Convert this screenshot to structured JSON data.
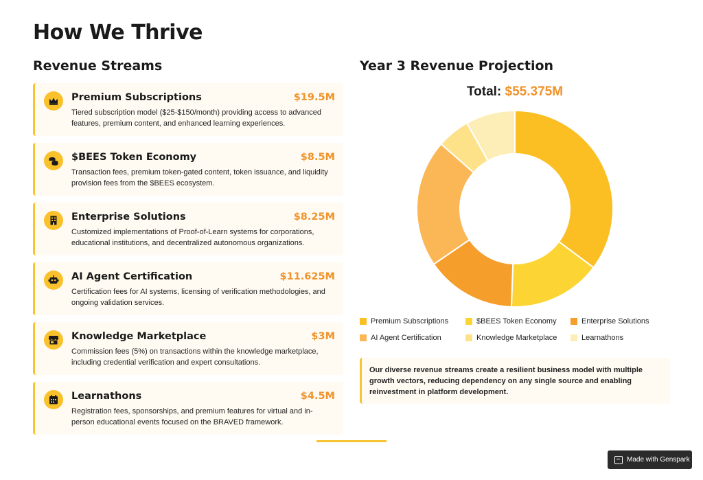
{
  "page": {
    "title": "How We Thrive"
  },
  "streams_section": {
    "title": "Revenue Streams",
    "items": [
      {
        "name": "Premium Subscriptions",
        "amount": "$19.5M",
        "icon": "crown-icon",
        "description": "Tiered subscription model ($25-$150/month) providing access to advanced features, premium content, and enhanced learning experiences."
      },
      {
        "name": "$BEES Token Economy",
        "amount": "$8.5M",
        "icon": "coins-icon",
        "description": "Transaction fees, premium token-gated content, token issuance, and liquidity provision fees from the $BEES ecosystem."
      },
      {
        "name": "Enterprise Solutions",
        "amount": "$8.25M",
        "icon": "building-icon",
        "description": "Customized implementations of Proof-of-Learn systems for corporations, educational institutions, and decentralized autonomous organizations."
      },
      {
        "name": "AI Agent Certification",
        "amount": "$11.625M",
        "icon": "robot-icon",
        "description": "Certification fees for AI systems, licensing of verification methodologies, and ongoing validation services."
      },
      {
        "name": "Knowledge Marketplace",
        "amount": "$3M",
        "icon": "store-icon",
        "description": "Commission fees (5%) on transactions within the knowledge marketplace, including credential verification and expert consultations."
      },
      {
        "name": "Learnathons",
        "amount": "$4.5M",
        "icon": "calendar-icon",
        "description": "Registration fees, sponsorships, and premium features for virtual and in-person educational events focused on the BRAVED framework."
      }
    ]
  },
  "projection": {
    "title": "Year 3 Revenue Projection",
    "total_label": "Total:",
    "total_value": "$55.375M",
    "note": "Our diverse revenue streams create a resilient business model with multiple growth vectors, reducing dependency on any single source and enabling reinvestment in platform development."
  },
  "chart_data": {
    "type": "pie",
    "subtype": "donut",
    "legend_position": "bottom",
    "categories": [
      "Premium Subscriptions",
      "$BEES Token Economy",
      "Enterprise Solutions",
      "AI Agent Certification",
      "Knowledge Marketplace",
      "Learnathons"
    ],
    "values": [
      19.5,
      8.5,
      8.25,
      11.625,
      3,
      4.5
    ],
    "colors": [
      "#fbbf24",
      "#fcd535",
      "#f59e2c",
      "#fbb755",
      "#fde28a",
      "#fdeeb8"
    ]
  },
  "badge": {
    "label": "Made with Genspark"
  },
  "colors": {
    "accent": "#f0932b",
    "card_border": "#f7c331",
    "card_bg": "#fffbf2"
  }
}
